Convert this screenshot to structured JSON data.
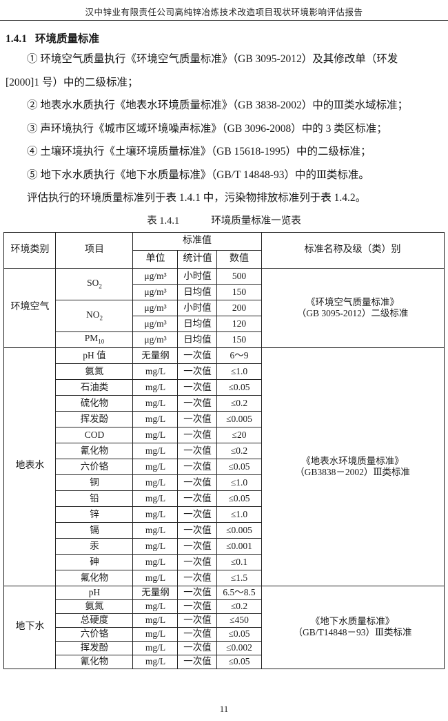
{
  "header": {
    "title": "汉中锌业有限责任公司高纯锌冶炼技术改造项目现状环境影响评估报告"
  },
  "section": {
    "number": "1.4.1",
    "title": "环境质量标准"
  },
  "content": {
    "items": [
      {
        "line1": "① 环境空气质量执行《环境空气质量标准》（GB 3095-2012）及其修改单（环发",
        "line2": "[2000]1 号）中的二级标准；"
      },
      {
        "line1": "② 地表水水质执行《地表水环境质量标准》（GB 3838-2002）中的Ⅲ类水域标准；"
      },
      {
        "line1": "③ 声环境执行《城市区域环境噪声标准》（GB 3096-2008）中的 3 类区标准；"
      },
      {
        "line1": "④ 土壤环境执行《土壤环境质量标准》（GB 15618-1995）中的二级标准；"
      },
      {
        "line1": "⑤ 地下水水质执行《地下水质量标准》（GB/T 14848-93）中的Ⅲ类标准。"
      }
    ],
    "paragraph": "评估执行的环境质量标准列于表 1.4.1 中，污染物排放标准列于表 1.4.2。"
  },
  "table": {
    "caption_label": "表 1.4.1",
    "caption_title": "环境质量标准一览表",
    "headers": {
      "category": "环境类别",
      "item": "项目",
      "standard_value": "标准值",
      "unit": "单位",
      "stat": "统计值",
      "value": "数值",
      "standard_name": "标准名称及级（类）别"
    },
    "sections": [
      {
        "category": "环境空气",
        "standard": [
          "《环境空气质量标准》",
          "（GB 3095-2012）二级标准"
        ],
        "rows": [
          {
            "item": "SO",
            "sub": "2",
            "item_rowspan": 2,
            "unit": "μg/m³",
            "stat": "小时值",
            "value": "500"
          },
          {
            "unit": "μg/m³",
            "stat": "日均值",
            "value": "150"
          },
          {
            "item": "NO",
            "sub": "2",
            "item_rowspan": 2,
            "unit": "μg/m³",
            "stat": "小时值",
            "value": "200"
          },
          {
            "unit": "μg/m³",
            "stat": "日均值",
            "value": "120"
          },
          {
            "item": "PM",
            "sub": "10",
            "unit": "μg/m³",
            "stat": "日均值",
            "value": "150"
          }
        ]
      },
      {
        "category": "地表水",
        "standard": [
          "《地表水环境质量标准》",
          "（GB3838－2002）Ⅲ类标准"
        ],
        "rows": [
          {
            "item": "pH 值",
            "unit": "无量纲",
            "stat": "一次值",
            "value": "6～9"
          },
          {
            "item": "氨氮",
            "unit": "mg/L",
            "stat": "一次值",
            "value": "≤1.0"
          },
          {
            "item": "石油类",
            "unit": "mg/L",
            "stat": "一次值",
            "value": "≤0.05"
          },
          {
            "item": "硫化物",
            "unit": "mg/L",
            "stat": "一次值",
            "value": "≤0.2"
          },
          {
            "item": "挥发酚",
            "unit": "mg/L",
            "stat": "一次值",
            "value": "≤0.005"
          },
          {
            "item": "COD",
            "unit": "mg/L",
            "stat": "一次值",
            "value": "≤20"
          },
          {
            "item": "氰化物",
            "unit": "mg/L",
            "stat": "一次值",
            "value": "≤0.2"
          },
          {
            "item": "六价铬",
            "unit": "mg/L",
            "stat": "一次值",
            "value": "≤0.05"
          },
          {
            "item": "铜",
            "unit": "mg/L",
            "stat": "一次值",
            "value": "≤1.0"
          },
          {
            "item": "铅",
            "unit": "mg/L",
            "stat": "一次值",
            "value": "≤0.05"
          },
          {
            "item": "锌",
            "unit": "mg/L",
            "stat": "一次值",
            "value": "≤1.0"
          },
          {
            "item": "镉",
            "unit": "mg/L",
            "stat": "一次值",
            "value": "≤0.005"
          },
          {
            "item": "汞",
            "unit": "mg/L",
            "stat": "一次值",
            "value": "≤0.001"
          },
          {
            "item": "砷",
            "unit": "mg/L",
            "stat": "一次值",
            "value": "≤0.1"
          },
          {
            "item": "氟化物",
            "unit": "mg/L",
            "stat": "一次值",
            "value": "≤1.5"
          }
        ]
      },
      {
        "category": "地下水",
        "standard": [
          "《地下水质量标准》",
          "（GB/T14848－93）Ⅲ类标准"
        ],
        "rows": [
          {
            "item": "pH",
            "unit": "无量纲",
            "stat": "一次值",
            "value": "6.5～8.5"
          },
          {
            "item": "氨氮",
            "unit": "mg/L",
            "stat": "一次值",
            "value": "≤0.2"
          },
          {
            "item": "总硬度",
            "unit": "mg/L",
            "stat": "一次值",
            "value": "≤450"
          },
          {
            "item": "六价铬",
            "unit": "mg/L",
            "stat": "一次值",
            "value": "≤0.05"
          },
          {
            "item": "挥发酚",
            "unit": "mg/L",
            "stat": "一次值",
            "value": "≤0.002"
          },
          {
            "item": "氰化物",
            "unit": "mg/L",
            "stat": "一次值",
            "value": "≤0.05"
          }
        ]
      }
    ]
  },
  "footer": {
    "page_number": "11"
  }
}
